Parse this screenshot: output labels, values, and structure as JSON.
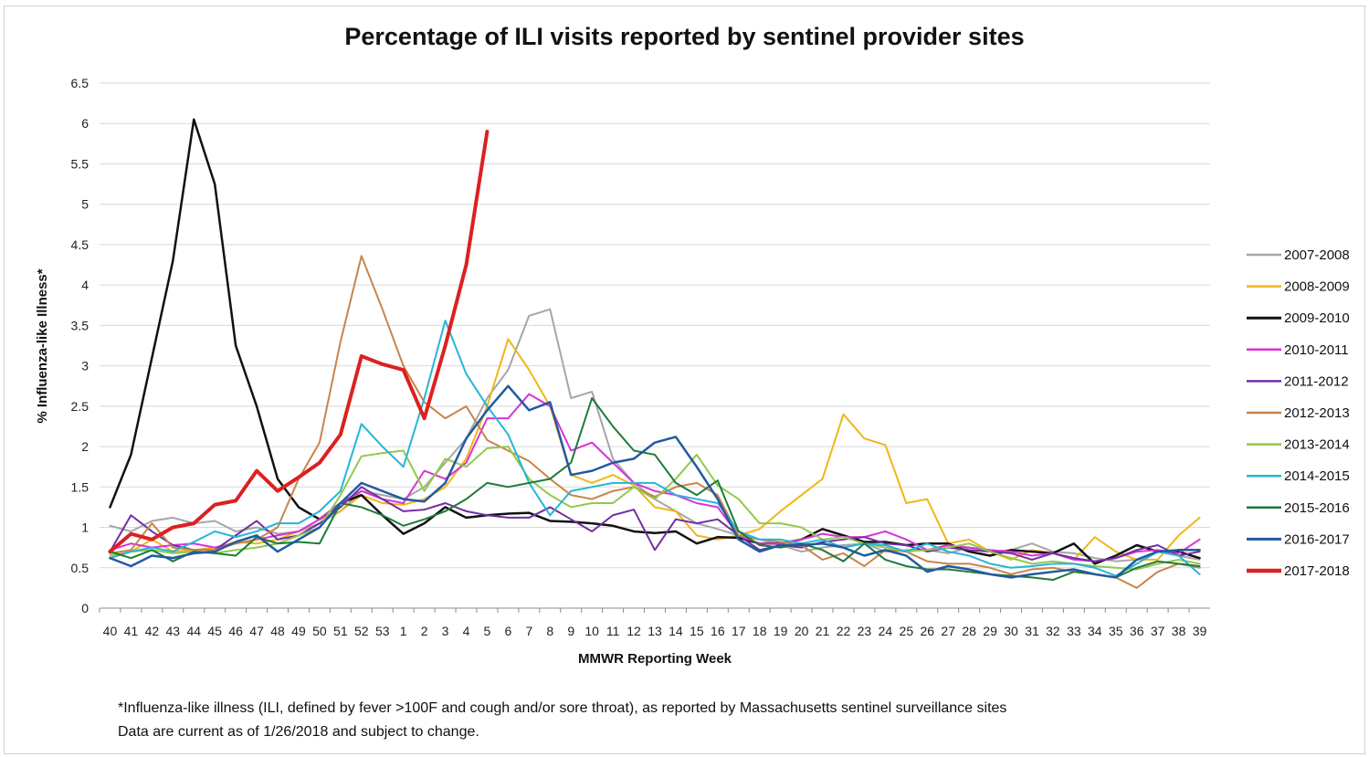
{
  "chart_data": {
    "type": "line",
    "title": "Percentage of ILI visits reported by sentinel provider sites",
    "xlabel": "MMWR Reporting Week",
    "ylabel": "% Influenza-like Illness*",
    "ylim": [
      0,
      6.5
    ],
    "yticks": [
      "0",
      "0.5",
      "1",
      "1.5",
      "2",
      "2.5",
      "3",
      "3.5",
      "4",
      "4.5",
      "5",
      "5.5",
      "6",
      "6.5"
    ],
    "grid": true,
    "legend_position": "right",
    "categories": [
      "40",
      "41",
      "42",
      "43",
      "44",
      "45",
      "46",
      "47",
      "48",
      "49",
      "50",
      "51",
      "52",
      "53",
      "1",
      "2",
      "3",
      "4",
      "5",
      "6",
      "7",
      "8",
      "9",
      "10",
      "11",
      "12",
      "13",
      "14",
      "15",
      "16",
      "17",
      "18",
      "19",
      "20",
      "21",
      "22",
      "23",
      "24",
      "25",
      "26",
      "27",
      "28",
      "29",
      "30",
      "31",
      "32",
      "33",
      "34",
      "35",
      "36",
      "37",
      "38",
      "39"
    ],
    "series": [
      {
        "name": "2007-2008",
        "color": "#a6a6a6",
        "width": 2,
        "values": [
          1.02,
          0.95,
          1.08,
          1.12,
          1.05,
          1.08,
          0.95,
          1.0,
          0.92,
          0.95,
          1.05,
          1.2,
          1.45,
          1.4,
          1.35,
          1.5,
          1.8,
          2.1,
          2.6,
          2.95,
          3.62,
          3.7,
          2.6,
          2.68,
          1.85,
          1.55,
          1.35,
          1.2,
          1.05,
          0.98,
          0.9,
          0.85,
          0.78,
          0.7,
          0.75,
          0.78,
          0.8,
          0.7,
          0.72,
          0.72,
          0.68,
          0.75,
          0.7,
          0.72,
          0.8,
          0.7,
          0.68,
          0.62,
          0.58,
          0.6,
          0.7,
          0.65,
          0.6
        ]
      },
      {
        "name": "2008-2009",
        "color": "#f0b618",
        "width": 2,
        "values": [
          0.62,
          0.7,
          0.85,
          0.7,
          0.72,
          0.75,
          0.82,
          0.8,
          0.85,
          0.95,
          1.1,
          1.2,
          1.4,
          1.3,
          1.28,
          1.35,
          1.5,
          1.85,
          2.5,
          3.33,
          2.95,
          2.5,
          1.65,
          1.55,
          1.65,
          1.52,
          1.25,
          1.2,
          0.9,
          0.85,
          0.9,
          0.98,
          1.2,
          1.4,
          1.6,
          2.4,
          2.1,
          2.02,
          1.3,
          1.35,
          0.8,
          0.85,
          0.7,
          0.6,
          0.72,
          0.68,
          0.6,
          0.88,
          0.7,
          0.6,
          0.6,
          0.9,
          1.12
        ]
      },
      {
        "name": "2009-2010",
        "color": "#111111",
        "width": 2.5,
        "values": [
          1.25,
          1.9,
          3.1,
          4.3,
          6.05,
          5.25,
          3.25,
          2.5,
          1.6,
          1.25,
          1.1,
          1.3,
          1.4,
          1.15,
          0.92,
          1.05,
          1.25,
          1.12,
          1.15,
          1.17,
          1.18,
          1.08,
          1.07,
          1.05,
          1.02,
          0.95,
          0.93,
          0.95,
          0.8,
          0.88,
          0.87,
          0.8,
          0.8,
          0.85,
          0.98,
          0.9,
          0.82,
          0.82,
          0.78,
          0.8,
          0.8,
          0.7,
          0.65,
          0.72,
          0.7,
          0.68,
          0.8,
          0.55,
          0.65,
          0.78,
          0.7,
          0.7,
          0.62
        ]
      },
      {
        "name": "2010-2011",
        "color": "#d833d8",
        "width": 2,
        "values": [
          0.72,
          0.8,
          0.75,
          0.78,
          0.8,
          0.75,
          0.8,
          0.85,
          0.9,
          0.95,
          1.1,
          1.3,
          1.45,
          1.35,
          1.3,
          1.7,
          1.6,
          1.8,
          2.35,
          2.35,
          2.65,
          2.5,
          1.95,
          2.05,
          1.8,
          1.55,
          1.45,
          1.4,
          1.3,
          1.25,
          0.9,
          0.8,
          0.8,
          0.85,
          0.92,
          0.88,
          0.88,
          0.95,
          0.85,
          0.72,
          0.78,
          0.75,
          0.72,
          0.7,
          0.65,
          0.68,
          0.6,
          0.58,
          0.62,
          0.7,
          0.72,
          0.68,
          0.85
        ]
      },
      {
        "name": "2011-2012",
        "color": "#7030a0",
        "width": 2,
        "values": [
          0.7,
          1.15,
          0.95,
          0.78,
          0.72,
          0.72,
          0.9,
          1.08,
          0.85,
          0.9,
          1.05,
          1.25,
          1.5,
          1.35,
          1.2,
          1.22,
          1.3,
          1.2,
          1.15,
          1.12,
          1.12,
          1.25,
          1.1,
          0.95,
          1.15,
          1.22,
          0.72,
          1.1,
          1.05,
          1.1,
          0.9,
          0.72,
          0.78,
          0.75,
          0.82,
          0.85,
          0.88,
          0.8,
          0.78,
          0.7,
          0.75,
          0.72,
          0.7,
          0.68,
          0.6,
          0.68,
          0.62,
          0.58,
          0.62,
          0.72,
          0.78,
          0.65,
          0.7
        ]
      },
      {
        "name": "2012-2013",
        "color": "#c8844a",
        "width": 2,
        "values": [
          0.68,
          0.72,
          1.05,
          0.75,
          0.72,
          0.72,
          0.8,
          0.85,
          1.0,
          1.6,
          2.05,
          3.3,
          4.36,
          3.7,
          3.0,
          2.55,
          2.35,
          2.5,
          2.08,
          1.95,
          1.82,
          1.6,
          1.4,
          1.35,
          1.45,
          1.5,
          1.38,
          1.5,
          1.55,
          1.4,
          0.9,
          0.85,
          0.82,
          0.78,
          0.6,
          0.68,
          0.52,
          0.72,
          0.7,
          0.58,
          0.55,
          0.55,
          0.5,
          0.42,
          0.48,
          0.5,
          0.45,
          0.42,
          0.38,
          0.25,
          0.45,
          0.55,
          0.5
        ]
      },
      {
        "name": "2013-2014",
        "color": "#92c94c",
        "width": 2,
        "values": [
          0.65,
          0.7,
          0.72,
          0.68,
          0.7,
          0.68,
          0.72,
          0.75,
          0.8,
          0.9,
          1.0,
          1.4,
          1.88,
          1.92,
          1.95,
          1.45,
          1.85,
          1.75,
          1.98,
          2.0,
          1.6,
          1.4,
          1.25,
          1.3,
          1.3,
          1.5,
          1.35,
          1.6,
          1.9,
          1.52,
          1.35,
          1.05,
          1.05,
          1.0,
          0.85,
          0.88,
          0.8,
          0.75,
          0.7,
          0.72,
          0.75,
          0.8,
          0.7,
          0.62,
          0.55,
          0.58,
          0.55,
          0.52,
          0.5,
          0.48,
          0.55,
          0.6,
          0.55
        ]
      },
      {
        "name": "2014-2015",
        "color": "#26b5d8",
        "width": 2,
        "values": [
          0.62,
          0.7,
          0.75,
          0.7,
          0.82,
          0.95,
          0.88,
          0.95,
          1.05,
          1.05,
          1.2,
          1.45,
          2.28,
          2.0,
          1.75,
          2.6,
          3.56,
          2.9,
          2.5,
          2.15,
          1.55,
          1.15,
          1.45,
          1.5,
          1.55,
          1.55,
          1.55,
          1.4,
          1.35,
          1.3,
          0.95,
          0.85,
          0.85,
          0.8,
          0.85,
          0.75,
          0.8,
          0.78,
          0.7,
          0.8,
          0.7,
          0.65,
          0.55,
          0.5,
          0.52,
          0.55,
          0.55,
          0.5,
          0.4,
          0.55,
          0.7,
          0.65,
          0.42
        ]
      },
      {
        "name": "2015-2016",
        "color": "#1f7a3c",
        "width": 2,
        "values": [
          0.7,
          0.62,
          0.72,
          0.58,
          0.7,
          0.68,
          0.65,
          0.88,
          0.8,
          0.82,
          0.8,
          1.3,
          1.25,
          1.15,
          1.02,
          1.1,
          1.2,
          1.35,
          1.55,
          1.5,
          1.55,
          1.6,
          1.8,
          2.6,
          2.25,
          1.95,
          1.9,
          1.55,
          1.4,
          1.58,
          0.95,
          0.78,
          0.75,
          0.8,
          0.72,
          0.58,
          0.8,
          0.6,
          0.52,
          0.48,
          0.48,
          0.45,
          0.42,
          0.4,
          0.38,
          0.35,
          0.45,
          0.42,
          0.38,
          0.5,
          0.58,
          0.55,
          0.52
        ]
      },
      {
        "name": "2016-2017",
        "color": "#215a9e",
        "width": 2.5,
        "values": [
          0.62,
          0.52,
          0.65,
          0.62,
          0.68,
          0.7,
          0.82,
          0.9,
          0.7,
          0.85,
          1.0,
          1.3,
          1.55,
          1.45,
          1.35,
          1.32,
          1.55,
          2.1,
          2.45,
          2.75,
          2.45,
          2.55,
          1.65,
          1.7,
          1.8,
          1.85,
          2.05,
          2.12,
          1.75,
          1.35,
          0.85,
          0.7,
          0.78,
          0.78,
          0.8,
          0.75,
          0.65,
          0.72,
          0.65,
          0.45,
          0.52,
          0.48,
          0.42,
          0.38,
          0.42,
          0.45,
          0.48,
          0.42,
          0.38,
          0.6,
          0.7,
          0.72,
          0.72
        ]
      },
      {
        "name": "2017-2018",
        "color": "#dc2020",
        "width": 4,
        "values": [
          0.7,
          0.92,
          0.85,
          1.0,
          1.05,
          1.28,
          1.33,
          1.7,
          1.45,
          1.62,
          1.8,
          2.15,
          3.12,
          3.02,
          2.95,
          2.35,
          3.25,
          4.25,
          5.9,
          null,
          null,
          null,
          null,
          null,
          null,
          null,
          null,
          null,
          null,
          null,
          null,
          null,
          null,
          null,
          null,
          null,
          null,
          null,
          null,
          null,
          null,
          null,
          null,
          null,
          null,
          null,
          null,
          null,
          null,
          null,
          null,
          null,
          null
        ]
      }
    ]
  },
  "footnote": {
    "line1": "*Influenza-like illness (ILI, defined by fever >100F and cough and/or sore throat), as reported by Massachusetts sentinel surveillance sites",
    "line2": "Data are current as of 1/26/2018 and subject to change."
  }
}
